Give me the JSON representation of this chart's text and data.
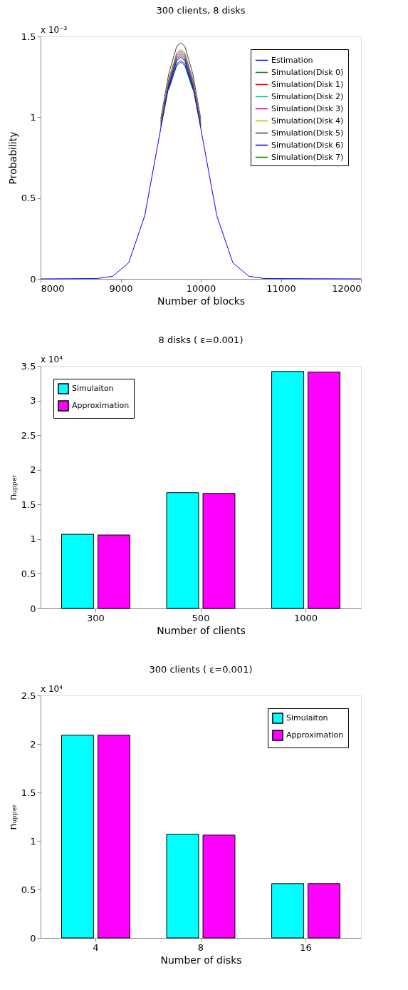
{
  "chart_data": [
    {
      "type": "line",
      "title": "300 clients, 8 disks",
      "xlabel": "Number of blocks",
      "ylabel": "Probability",
      "annotations": [
        "x 10⁻³"
      ],
      "xlim": [
        8000,
        12000
      ],
      "xticks": [
        8000,
        9000,
        10000,
        11000,
        12000
      ],
      "ylim": [
        0,
        1.5
      ],
      "yticks": [
        0,
        0.5,
        1,
        1.5
      ],
      "grid": false,
      "legend": "top right",
      "marker": "none",
      "line_style": "solid",
      "x": [
        8000,
        8700,
        8900,
        9100,
        9300,
        9500,
        9600,
        9700,
        9750,
        9800,
        9900,
        10000,
        10200,
        10400,
        10600,
        10800,
        12000
      ],
      "series": [
        {
          "name": "Estimation",
          "color": "#0000ff",
          "values": [
            0,
            0.002,
            0.016,
            0.1,
            0.39,
            0.93,
            1.19,
            1.35,
            1.37,
            1.35,
            1.19,
            0.93,
            0.39,
            0.1,
            0.016,
            0.002,
            0
          ]
        },
        {
          "name": "Simulation(Disk 0)",
          "color": "#008000",
          "x": [
            9500,
            9600,
            9700,
            9750,
            9800,
            9900,
            10000
          ],
          "values": [
            0.94,
            1.2,
            1.36,
            1.38,
            1.36,
            1.2,
            0.94
          ]
        },
        {
          "name": "Simulation(Disk 1)",
          "color": "#ff0000",
          "x": [
            9500,
            9600,
            9700,
            9750,
            9800,
            9900,
            10000
          ],
          "values": [
            0.95,
            1.21,
            1.37,
            1.39,
            1.37,
            1.21,
            0.95
          ]
        },
        {
          "name": "Simulation(Disk 2)",
          "color": "#00bfbf",
          "x": [
            9500,
            9600,
            9700,
            9750,
            9800,
            9900,
            10000
          ],
          "values": [
            0.96,
            1.22,
            1.38,
            1.4,
            1.38,
            1.22,
            0.96
          ]
        },
        {
          "name": "Simulation(Disk 3)",
          "color": "#bf00bf",
          "x": [
            9500,
            9600,
            9700,
            9750,
            9800,
            9900,
            10000
          ],
          "values": [
            0.97,
            1.23,
            1.39,
            1.41,
            1.39,
            1.23,
            0.97
          ]
        },
        {
          "name": "Simulation(Disk 4)",
          "color": "#bfbf00",
          "x": [
            9500,
            9600,
            9700,
            9750,
            9800,
            9900,
            10000
          ],
          "values": [
            0.98,
            1.24,
            1.4,
            1.42,
            1.4,
            1.24,
            0.98
          ]
        },
        {
          "name": "Simulation(Disk 5)",
          "color": "#404040",
          "x": [
            9500,
            9600,
            9700,
            9750,
            9800,
            9900,
            10000
          ],
          "values": [
            0.99,
            1.27,
            1.44,
            1.46,
            1.44,
            1.27,
            0.99
          ]
        },
        {
          "name": "Simulation(Disk 6)",
          "color": "#0000ff",
          "x": [
            9600,
            9700,
            9750,
            9800,
            9900
          ],
          "values": [
            1.18,
            1.33,
            1.35,
            1.33,
            1.18
          ]
        },
        {
          "name": "Simulation(Disk 7)",
          "color": "#008000",
          "x": [
            9600,
            9700,
            9750,
            9800,
            9900
          ],
          "values": [
            1.17,
            1.32,
            1.34,
            1.32,
            1.17
          ]
        }
      ]
    },
    {
      "type": "bar",
      "title": "8 disks ( ε=0.001)",
      "xlabel": "Number of clients",
      "ylabel": "nᵤₚₚₑᵣ",
      "annotations": [
        "x 10⁴"
      ],
      "ylim": [
        0,
        3.5
      ],
      "yticks": [
        0,
        0.5,
        1,
        1.5,
        2,
        2.5,
        3,
        3.5
      ],
      "grid": false,
      "legend": "top left",
      "categories": [
        "300",
        "500",
        "1000"
      ],
      "series": [
        {
          "name": "Simulaiton",
          "color": "#00ffff",
          "values": [
            1.07,
            1.67,
            3.42
          ]
        },
        {
          "name": "Approximation",
          "color": "#ff00ff",
          "values": [
            1.06,
            1.66,
            3.41
          ]
        }
      ]
    },
    {
      "type": "bar",
      "title": "300 clients ( ε=0.001)",
      "xlabel": "Number of disks",
      "ylabel": "nᵤₚₚₑᵣ",
      "annotations": [
        "x 10⁴"
      ],
      "ylim": [
        0,
        2.5
      ],
      "yticks": [
        0,
        0.5,
        1,
        1.5,
        2,
        2.5
      ],
      "grid": false,
      "legend": "top right",
      "categories": [
        "4",
        "8",
        "16"
      ],
      "series": [
        {
          "name": "Simulaiton",
          "color": "#00ffff",
          "values": [
            2.09,
            1.07,
            0.56
          ]
        },
        {
          "name": "Approximation",
          "color": "#ff00ff",
          "values": [
            2.09,
            1.06,
            0.56
          ]
        }
      ]
    }
  ]
}
